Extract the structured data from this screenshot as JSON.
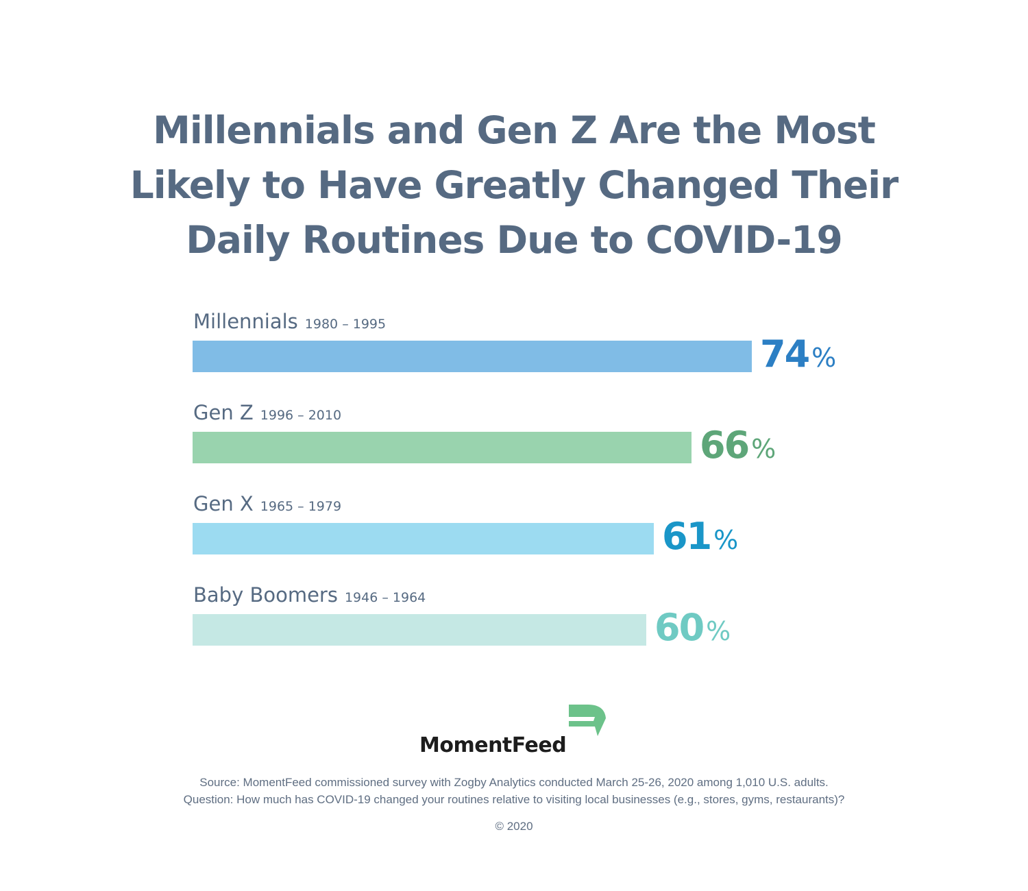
{
  "title": {
    "line1": "Millennials and Gen Z Are the Most",
    "line2": "Likely to Have Greatly Changed Their",
    "line3": "Daily Routines Due to COVID-19"
  },
  "chart_data": {
    "type": "bar",
    "orientation": "horizontal",
    "categories": [
      "Millennials",
      "Gen Z",
      "Gen X",
      "Baby Boomers"
    ],
    "category_years": [
      "1980 – 1995",
      "1996 – 2010",
      "1965 – 1979",
      "1946 – 1964"
    ],
    "values": [
      74,
      66,
      61,
      60
    ],
    "value_suffix": "%",
    "colors": [
      "#80bce6",
      "#99d3ae",
      "#9cdbf1",
      "#c5e8e4"
    ],
    "label_colors": [
      "#2c7fc4",
      "#5ea679",
      "#1a96c8",
      "#6fcac3"
    ],
    "xlim": [
      0,
      100
    ],
    "grid": false,
    "legend": "none"
  },
  "logo": {
    "text": "MomentFeed",
    "mark_color": "#6cc28a",
    "mark_icon": "momentfeed-flag-icon"
  },
  "footer": {
    "source": "Source: MomentFeed commissioned survey with Zogby Analytics conducted March 25-26, 2020 among 1,010 U.S. adults.",
    "question": "Question: How much has COVID-19 changed your routines relative to visiting local businesses (e.g., stores, gyms, restaurants)?",
    "copyright": "© 2020"
  }
}
